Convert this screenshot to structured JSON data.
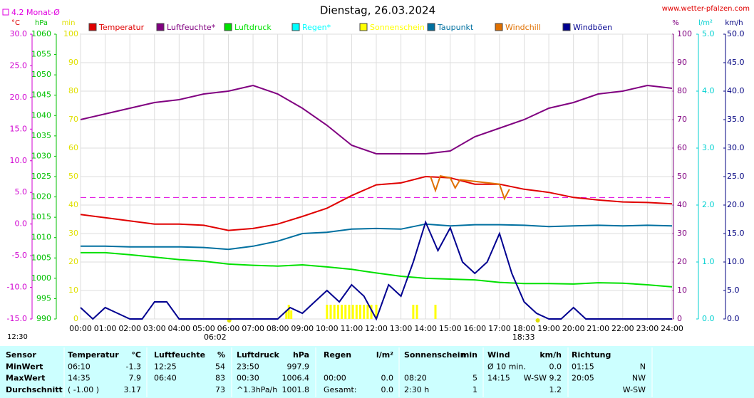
{
  "chart_data": {
    "type": "line",
    "title": "Dienstag, 26.03.2024",
    "source": "www.wetter-pfalzen.com",
    "updated": "12:30",
    "monthly_avg": {
      "label": "4.2 Monat-Ø",
      "value": 4.2,
      "color": "#e000e0"
    },
    "xlim": [
      0,
      24
    ],
    "xticks": [
      {
        "value": 0,
        "label": "00:00"
      },
      {
        "value": 1,
        "label": "01:00"
      },
      {
        "value": 2,
        "label": "02:00"
      },
      {
        "value": 3,
        "label": "03:00"
      },
      {
        "value": 4,
        "label": "04:00"
      },
      {
        "value": 5,
        "label": "05:00"
      },
      {
        "value": 6,
        "label": "06:00"
      },
      {
        "value": 7,
        "label": "07:00"
      },
      {
        "value": 8,
        "label": "08:00"
      },
      {
        "value": 9,
        "label": "09:00"
      },
      {
        "value": 10,
        "label": "10:00"
      },
      {
        "value": 11,
        "label": "11:00"
      },
      {
        "value": 12,
        "label": "12:00"
      },
      {
        "value": 13,
        "label": "13:00"
      },
      {
        "value": 14,
        "label": "14:00"
      },
      {
        "value": 15,
        "label": "15:00"
      },
      {
        "value": 16,
        "label": "16:00"
      },
      {
        "value": 17,
        "label": "17:00"
      },
      {
        "value": 18,
        "label": "18:00"
      },
      {
        "value": 19,
        "label": "19:00"
      },
      {
        "value": 20,
        "label": "20:00"
      },
      {
        "value": 21,
        "label": "21:00"
      },
      {
        "value": 22,
        "label": "22:00"
      },
      {
        "value": 23,
        "label": "23:00"
      },
      {
        "value": 24,
        "label": "24:00"
      }
    ],
    "sun_markers": [
      {
        "value": 6.033,
        "label": "06:02"
      },
      {
        "value": 18.55,
        "label": "18:33"
      }
    ],
    "grid": true,
    "axes": {
      "temp": {
        "unit": "°C",
        "unit_color": "#e00000",
        "color": "#d000d0",
        "lim": [
          -15,
          30
        ],
        "ticks": [
          {
            "value": 30,
            "label": "30.0"
          },
          {
            "value": 25,
            "label": "25.0"
          },
          {
            "value": 20,
            "label": "20.0"
          },
          {
            "value": 15,
            "label": "15.0"
          },
          {
            "value": 10,
            "label": "10.0"
          },
          {
            "value": 5,
            "label": "5.0"
          },
          {
            "value": 0,
            "label": "0.0"
          },
          {
            "value": -5,
            "label": "-5.0"
          },
          {
            "value": -10,
            "label": "-10.0"
          },
          {
            "value": -15,
            "label": "-15.0"
          }
        ]
      },
      "hpa": {
        "unit": "hPa",
        "unit_color": "#00c000",
        "color": "#00c000",
        "lim": [
          990,
          1060
        ],
        "ticks": [
          1060,
          1055,
          1050,
          1045,
          1040,
          1035,
          1030,
          1025,
          1020,
          1015,
          1010,
          1005,
          1000,
          995,
          990
        ]
      },
      "min": {
        "unit": "min",
        "unit_color": "#e0e000",
        "color": "#e0e000",
        "lim": [
          0,
          100
        ],
        "ticks": [
          100,
          90,
          80,
          70,
          60,
          50,
          40,
          30,
          20,
          10,
          0
        ]
      },
      "pct": {
        "unit": "%",
        "unit_color": "#800080",
        "color": "#800080",
        "lim": [
          0,
          100
        ],
        "ticks": [
          100,
          90,
          80,
          70,
          60,
          50,
          40,
          30,
          20,
          10,
          0
        ]
      },
      "rain": {
        "unit": "l/m²",
        "unit_color": "#00d0d0",
        "color": "#00d0d0",
        "lim": [
          0,
          5
        ],
        "ticks": [
          {
            "value": 5,
            "label": "5.0"
          },
          {
            "value": 4,
            "label": "4.0"
          },
          {
            "value": 3,
            "label": "3.0"
          },
          {
            "value": 2,
            "label": "2.0"
          },
          {
            "value": 1,
            "label": "1.0"
          },
          {
            "value": 0,
            "label": "0.0"
          }
        ]
      },
      "kmh": {
        "unit": "km/h",
        "unit_color": "#000080",
        "color": "#000080",
        "lim": [
          0,
          50
        ],
        "ticks": [
          {
            "value": 50,
            "label": "50.0"
          },
          {
            "value": 45,
            "label": "45.0"
          },
          {
            "value": 40,
            "label": "40.0"
          },
          {
            "value": 35,
            "label": "35.0"
          },
          {
            "value": 30,
            "label": "30.0"
          },
          {
            "value": 25,
            "label": "25.0"
          },
          {
            "value": 20,
            "label": "20.0"
          },
          {
            "value": 15,
            "label": "15.0"
          },
          {
            "value": 10,
            "label": "10.0"
          },
          {
            "value": 5,
            "label": "5.0"
          },
          {
            "value": 0,
            "label": "0.0"
          }
        ]
      }
    },
    "series": [
      {
        "name": "Temperatur",
        "color": "#e00000",
        "axis": "temp",
        "kind": "line",
        "x": [
          0,
          1,
          2,
          3,
          4,
          5,
          6,
          7,
          8,
          9,
          10,
          11,
          12,
          13,
          14,
          15,
          16,
          17,
          18,
          19,
          20,
          21,
          22,
          23,
          24
        ],
        "values": [
          1.5,
          1.0,
          0.5,
          0,
          0,
          -0.2,
          -1.0,
          -0.7,
          0,
          1.2,
          2.5,
          4.5,
          6.2,
          6.5,
          7.5,
          7.3,
          6.3,
          6.3,
          5.5,
          5.0,
          4.2,
          3.8,
          3.5,
          3.4,
          3.2
        ]
      },
      {
        "name": "Luftfeuchte*",
        "color": "#800080",
        "axis": "pct",
        "kind": "line",
        "x": [
          0,
          1,
          2,
          3,
          4,
          5,
          6,
          7,
          8,
          9,
          10,
          11,
          12,
          13,
          14,
          15,
          16,
          17,
          18,
          19,
          20,
          21,
          22,
          23,
          24
        ],
        "values": [
          70,
          72,
          74,
          76,
          77,
          79,
          80,
          82,
          79,
          74,
          68,
          61,
          58,
          58,
          58,
          59,
          64,
          67,
          70,
          74,
          76,
          79,
          80,
          82,
          81
        ]
      },
      {
        "name": "Luftdruck",
        "color": "#00e000",
        "axis": "hpa",
        "kind": "line",
        "x": [
          0,
          1,
          2,
          3,
          4,
          5,
          6,
          7,
          8,
          9,
          10,
          11,
          12,
          13,
          14,
          15,
          16,
          17,
          18,
          19,
          20,
          21,
          22,
          23,
          24
        ],
        "values": [
          1006.3,
          1006.3,
          1005.8,
          1005.2,
          1004.6,
          1004.2,
          1003.5,
          1003.2,
          1003.0,
          1003.3,
          1002.8,
          1002.2,
          1001.3,
          1000.5,
          1000.0,
          999.8,
          999.6,
          999.0,
          998.7,
          998.7,
          998.6,
          998.9,
          998.8,
          998.4,
          997.9
        ]
      },
      {
        "name": "Regen*",
        "color": "#00ffff",
        "axis": "rain",
        "kind": "bar",
        "x": [],
        "values": []
      },
      {
        "name": "Sonnenschein",
        "color": "#ffff00",
        "axis": "min",
        "kind": "bar",
        "x": [
          8.35,
          8.45,
          8.55,
          10,
          10.15,
          10.3,
          10.45,
          10.6,
          10.75,
          10.9,
          11.05,
          11.2,
          11.35,
          11.5,
          11.65,
          11.8,
          12.0,
          13.5,
          13.65,
          14.4
        ],
        "values": [
          3,
          5,
          3,
          5,
          5,
          5,
          5,
          5,
          5,
          5,
          5,
          5,
          5,
          5,
          5,
          5,
          5,
          5,
          5,
          5
        ]
      },
      {
        "name": "Taupunkt",
        "color": "#0070a0",
        "axis": "temp",
        "kind": "line",
        "x": [
          0,
          1,
          2,
          3,
          4,
          5,
          6,
          7,
          8,
          9,
          10,
          11,
          12,
          13,
          14,
          15,
          16,
          17,
          18,
          19,
          20,
          21,
          22,
          23,
          24
        ],
        "values": [
          -3.5,
          -3.5,
          -3.6,
          -3.6,
          -3.6,
          -3.7,
          -4.0,
          -3.5,
          -2.7,
          -1.5,
          -1.3,
          -0.8,
          -0.7,
          -0.8,
          0.0,
          -0.3,
          -0.1,
          -0.1,
          -0.2,
          -0.4,
          -0.3,
          -0.2,
          -0.3,
          -0.2,
          -0.3
        ]
      },
      {
        "name": "Windchill",
        "color": "#e07000",
        "axis": "temp",
        "kind": "line",
        "x": [
          14.2,
          14.4,
          14.6,
          15.0,
          15.2,
          15.4,
          17.0,
          17.2,
          17.4
        ],
        "values": [
          7.5,
          5.3,
          7.6,
          7.3,
          5.7,
          7.0,
          6.3,
          4.0,
          5.5
        ]
      },
      {
        "name": "Windböen",
        "color": "#000090",
        "axis": "kmh",
        "kind": "line",
        "x": [
          0,
          0.5,
          1,
          1.5,
          2,
          2.5,
          3,
          3.5,
          4,
          4.5,
          5,
          5.5,
          6,
          6.5,
          7,
          7.5,
          8,
          8.5,
          9,
          9.5,
          10,
          10.5,
          11,
          11.5,
          12,
          12.5,
          13,
          13.5,
          14,
          14.5,
          15,
          15.5,
          16,
          16.5,
          17,
          17.5,
          18,
          18.5,
          19,
          19.5,
          20,
          20.5,
          21,
          21.5,
          22,
          22.5,
          23,
          23.5,
          24
        ],
        "values": [
          2,
          0,
          2,
          1,
          0,
          0,
          3,
          3,
          0,
          0,
          0,
          0,
          0,
          0,
          0,
          0,
          0,
          2,
          1,
          3,
          5,
          3,
          6,
          4,
          0,
          6,
          4,
          10,
          17,
          12,
          16,
          10,
          8,
          10,
          15,
          8,
          3,
          1,
          0,
          0,
          2,
          0,
          0,
          0,
          0,
          0,
          0,
          0,
          0
        ]
      }
    ]
  },
  "table": {
    "rows": [
      [
        "Sensor",
        "Temperatur",
        "°C",
        "Luftfeuchte",
        "%",
        "Luftdruck",
        "hPa",
        "Regen",
        "l/m²",
        "Sonnenschein",
        "min",
        "Wind",
        "km/h",
        "Richtung",
        null
      ],
      [
        "MinWert",
        "06:10",
        "-1.3",
        "12:25",
        "54",
        "23:50",
        "997.9",
        null,
        null,
        null,
        null,
        "Ø 10 min.",
        "0.0",
        "01:15",
        "N"
      ],
      [
        "MaxWert",
        "14:35",
        "7.9",
        "06:40",
        "83",
        "00:30",
        "1006.4",
        "00:00",
        "0.0",
        "08:20",
        "5",
        "14:15",
        "W-SW 9.2",
        "20:05",
        "NW"
      ],
      [
        "Durchschnitt",
        "( -1.00 )",
        "3.17",
        null,
        "73",
        "^1.3hPa/h",
        "1001.8",
        "Gesamt:",
        "0.0",
        "2:30 h",
        "1",
        null,
        "1.2",
        null,
        "W-SW"
      ]
    ]
  }
}
